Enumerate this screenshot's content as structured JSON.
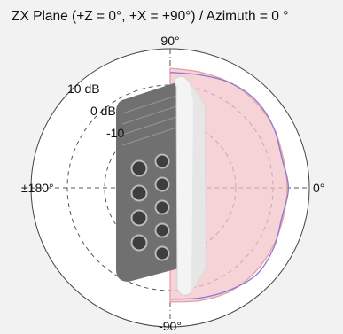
{
  "chart_data": {
    "type": "polar",
    "title": "ZX Plane (+Z = 0°, +X = +90°) / Azimuth = 0 °",
    "angle_labels": {
      "top": "90°",
      "right": "0°",
      "bottom": "-90°",
      "left": "±180°"
    },
    "ring_labels": [
      "10 dB",
      "0 dB",
      "-10"
    ],
    "grid": true,
    "grid_style": "dashed",
    "series": [
      {
        "color": "#e8a0a8",
        "fill": "#f2c4c8",
        "points": [
          [
            90,
            0.86
          ],
          [
            75,
            0.86
          ],
          [
            60,
            0.87
          ],
          [
            45,
            0.87
          ],
          [
            30,
            0.86
          ],
          [
            15,
            0.84
          ],
          [
            0,
            0.84
          ],
          [
            -15,
            0.84
          ],
          [
            -30,
            0.85
          ],
          [
            -45,
            0.86
          ],
          [
            -60,
            0.86
          ],
          [
            -75,
            0.84
          ],
          [
            -90,
            0.82
          ]
        ]
      },
      {
        "color": "#8a7ad0",
        "fill": "none",
        "points": [
          [
            90,
            0.83
          ],
          [
            75,
            0.84
          ],
          [
            60,
            0.87
          ],
          [
            45,
            0.88
          ],
          [
            30,
            0.86
          ],
          [
            15,
            0.83
          ],
          [
            0,
            0.85
          ],
          [
            -15,
            0.83
          ],
          [
            -30,
            0.86
          ],
          [
            -45,
            0.88
          ],
          [
            -60,
            0.85
          ],
          [
            -75,
            0.82
          ],
          [
            -90,
            0.8
          ]
        ]
      }
    ]
  },
  "product_image": {
    "depicts": "outdoor-radio-unit",
    "body_color": "#f3f3f3",
    "heatsink_color": "#6f6f6f",
    "connector_color": "#4a4a4a"
  }
}
